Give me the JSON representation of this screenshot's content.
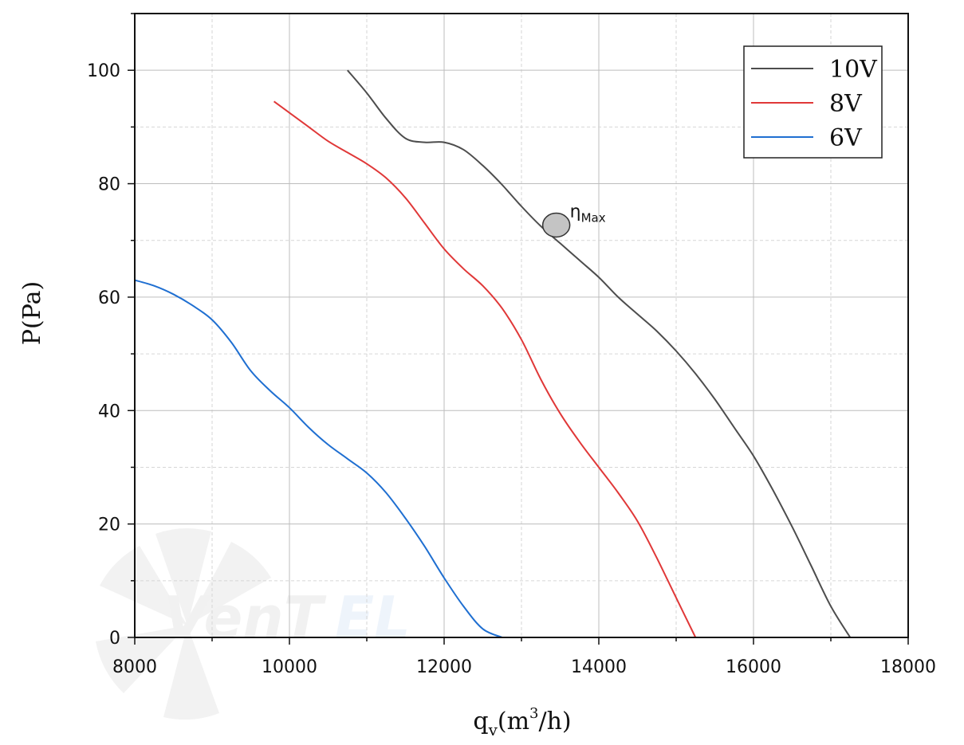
{
  "chart_data": {
    "type": "line",
    "xlabel": "q",
    "xlabel_sub": "v",
    "xlabel_unit_pre": "(m",
    "xlabel_unit_sup": "3",
    "xlabel_unit_post": "/h)",
    "ylabel": "P(Pa)",
    "xlim": [
      8000,
      18000
    ],
    "ylim": [
      0,
      110
    ],
    "x_ticks": [
      "8000",
      "10000",
      "12000",
      "14000",
      "16000",
      "18000"
    ],
    "y_ticks": [
      "0",
      "20",
      "40",
      "60",
      "80",
      "100"
    ],
    "grid": true,
    "legend_position": "top-right",
    "series": [
      {
        "name": "10V",
        "color": "#4d4d4d",
        "x": [
          10750,
          11000,
          11250,
          11500,
          11750,
          12000,
          12250,
          12500,
          12750,
          13000,
          13250,
          13500,
          13750,
          14000,
          14250,
          14500,
          14750,
          15000,
          15250,
          15500,
          15750,
          16000,
          16250,
          16500,
          16750,
          17000,
          17250
        ],
        "y": [
          100,
          96,
          91.5,
          88,
          87.3,
          87.3,
          86,
          83.2,
          79.8,
          76,
          72.5,
          69.5,
          66.5,
          63.5,
          60,
          57,
          54,
          50.5,
          46.5,
          42,
          37,
          32,
          26,
          19.5,
          12.5,
          5.5,
          0
        ]
      },
      {
        "name": "8V",
        "color": "#e03838",
        "x": [
          9800,
          10000,
          10250,
          10500,
          10750,
          11000,
          11250,
          11500,
          11750,
          12000,
          12250,
          12500,
          12750,
          13000,
          13250,
          13500,
          13750,
          14000,
          14250,
          14500,
          14750,
          15000,
          15250
        ],
        "y": [
          94.5,
          92.5,
          90,
          87.5,
          85.5,
          83.5,
          81,
          77.5,
          73,
          68.5,
          65,
          62,
          58,
          52.5,
          45.5,
          39.5,
          34.5,
          30,
          25.5,
          20.5,
          14,
          7,
          0
        ]
      },
      {
        "name": "6V",
        "color": "#1f6fd1",
        "x": [
          8000,
          8250,
          8500,
          8750,
          9000,
          9250,
          9500,
          9750,
          10000,
          10250,
          10500,
          10750,
          11000,
          11250,
          11500,
          11750,
          12000,
          12250,
          12500,
          12750
        ],
        "y": [
          63,
          62,
          60.5,
          58.5,
          56,
          52,
          47,
          43.5,
          40.5,
          37,
          34,
          31.5,
          29,
          25.5,
          21,
          16,
          10.5,
          5.5,
          1.5,
          0
        ]
      }
    ],
    "annotations": [
      {
        "label": "η",
        "sub": "Max",
        "x": 13450,
        "y": 72.7
      }
    ]
  }
}
